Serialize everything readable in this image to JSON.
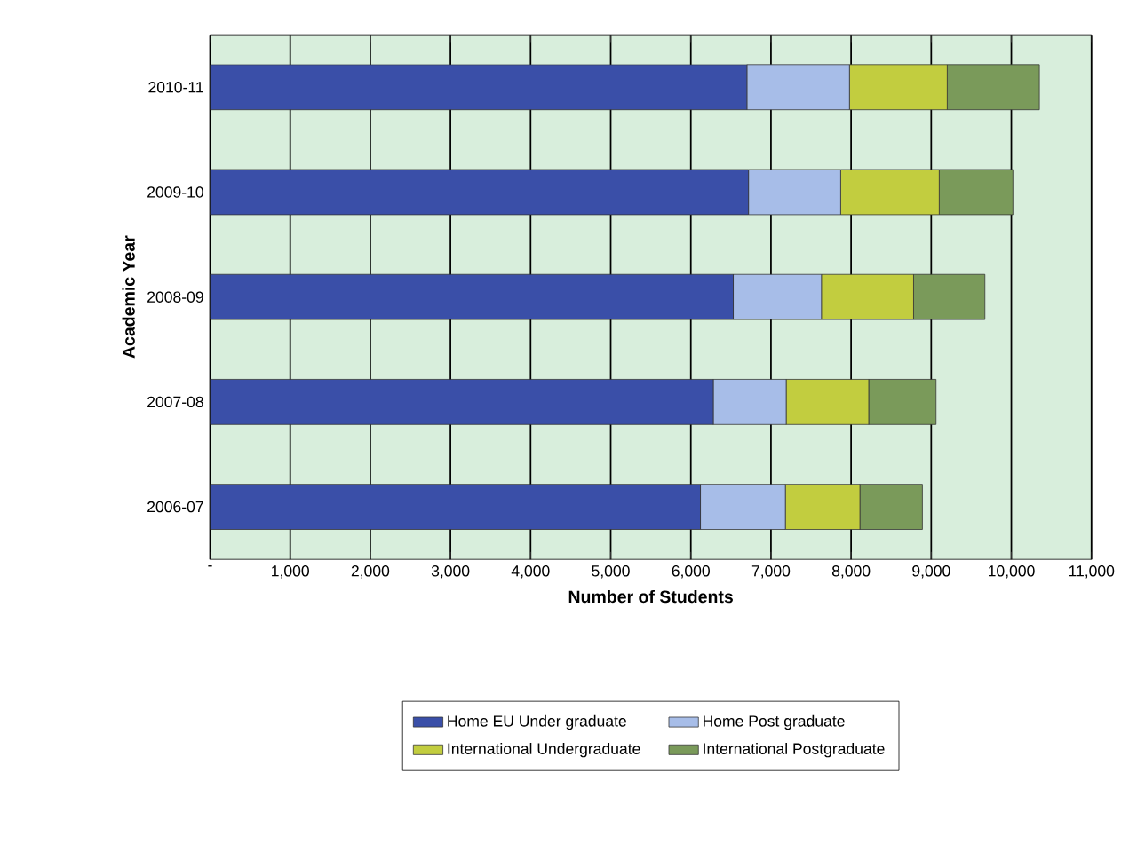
{
  "chart_data": {
    "type": "bar",
    "orientation": "horizontal",
    "stacked": true,
    "xlabel": "Number of Students",
    "ylabel": "Academic Year",
    "categories": [
      "2010-11",
      "2009-10",
      "2008-09",
      "2007-08",
      "2006-07"
    ],
    "series": [
      {
        "name": "Home EU Under graduate",
        "color": "#3a4fa8",
        "values": [
          6700,
          6720,
          6530,
          6280,
          6120
        ]
      },
      {
        "name": "Home Post graduate",
        "color": "#a7bde8",
        "values": [
          1280,
          1150,
          1100,
          910,
          1060
        ]
      },
      {
        "name": "International Undergraduate",
        "color": "#c2cd3f",
        "values": [
          1220,
          1230,
          1150,
          1030,
          930
        ]
      },
      {
        "name": "International Postgraduate",
        "color": "#7a9a5a",
        "values": [
          1150,
          920,
          890,
          840,
          780
        ]
      }
    ],
    "xlim": [
      0,
      11000
    ],
    "xticks": [
      {
        "value": 0,
        "label": "-"
      },
      {
        "value": 1000,
        "label": "1,000"
      },
      {
        "value": 2000,
        "label": "2,000"
      },
      {
        "value": 3000,
        "label": "3,000"
      },
      {
        "value": 4000,
        "label": "4,000"
      },
      {
        "value": 5000,
        "label": "5,000"
      },
      {
        "value": 6000,
        "label": "6,000"
      },
      {
        "value": 7000,
        "label": "7,000"
      },
      {
        "value": 8000,
        "label": "8,000"
      },
      {
        "value": 9000,
        "label": "9,000"
      },
      {
        "value": 10000,
        "label": "10,000"
      },
      {
        "value": 11000,
        "label": "11,000"
      }
    ],
    "grid": "x",
    "legend": "bottom"
  }
}
